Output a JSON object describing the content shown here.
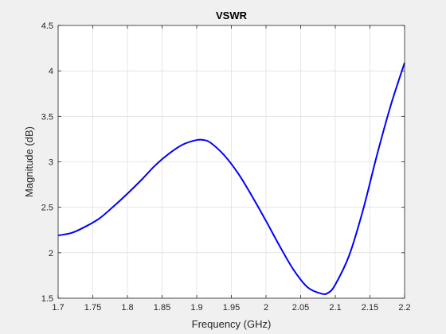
{
  "chart_data": {
    "type": "line",
    "title": "VSWR",
    "xlabel": "Frequency (GHz)",
    "ylabel": "Magnitude (dB)",
    "xlim": [
      1.7,
      2.2
    ],
    "ylim": [
      1.5,
      4.5
    ],
    "xticks": [
      "1.7",
      "1.75",
      "1.8",
      "1.85",
      "1.9",
      "1.95",
      "2",
      "2.05",
      "2.1",
      "2.15",
      "2.2"
    ],
    "yticks": [
      "1.5",
      "2",
      "2.5",
      "3",
      "3.5",
      "4",
      "4.5"
    ],
    "grid": true,
    "series": [
      {
        "color": "#0000ff",
        "x": [
          1.7,
          1.72,
          1.74,
          1.76,
          1.78,
          1.8,
          1.82,
          1.84,
          1.86,
          1.88,
          1.9,
          1.91,
          1.92,
          1.94,
          1.96,
          1.98,
          2.0,
          2.02,
          2.04,
          2.06,
          2.08,
          2.09,
          2.1,
          2.12,
          2.14,
          2.16,
          2.18,
          2.2
        ],
        "y": [
          2.19,
          2.22,
          2.29,
          2.38,
          2.51,
          2.65,
          2.8,
          2.96,
          3.09,
          3.19,
          3.24,
          3.24,
          3.21,
          3.07,
          2.87,
          2.62,
          2.35,
          2.07,
          1.81,
          1.62,
          1.55,
          1.56,
          1.65,
          1.97,
          2.47,
          3.07,
          3.62,
          4.09
        ]
      }
    ]
  }
}
